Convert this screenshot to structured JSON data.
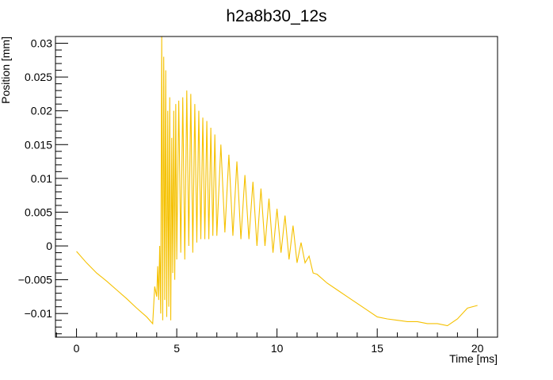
{
  "chart_data": {
    "type": "line",
    "title": "h2a8b30_12s",
    "xlabel": "Time [ms]",
    "ylabel": "Position [mm]",
    "xlim": [
      -1.05,
      21.0
    ],
    "ylim": [
      -0.0135,
      0.031
    ],
    "x_ticks": [
      0,
      5,
      10,
      15,
      20
    ],
    "x_tick_labels": [
      "0",
      "5",
      "10",
      "15",
      "20"
    ],
    "y_ticks": [
      -0.01,
      -0.005,
      0,
      0.005,
      0.01,
      0.015,
      0.02,
      0.025,
      0.03
    ],
    "y_tick_labels": [
      "−0.01",
      "−0.005",
      "0",
      "0.005",
      "0.01",
      "0.015",
      "0.02",
      "0.025",
      "0.03"
    ],
    "grid": false,
    "series": [
      {
        "color": "#f5c100",
        "x": [
          0.0,
          0.5,
          1.0,
          1.5,
          2.0,
          2.5,
          3.0,
          3.5,
          3.8,
          3.9,
          4.0,
          4.05,
          4.1,
          4.15,
          4.2,
          4.25,
          4.3,
          4.35,
          4.4,
          4.45,
          4.5,
          4.55,
          4.6,
          4.65,
          4.7,
          4.75,
          4.8,
          4.85,
          4.9,
          4.95,
          5.0,
          5.1,
          5.2,
          5.3,
          5.4,
          5.5,
          5.6,
          5.7,
          5.8,
          5.9,
          6.0,
          6.1,
          6.2,
          6.3,
          6.4,
          6.5,
          6.6,
          6.7,
          6.8,
          6.9,
          7.0,
          7.2,
          7.4,
          7.6,
          7.8,
          8.0,
          8.2,
          8.4,
          8.6,
          8.8,
          9.0,
          9.2,
          9.4,
          9.6,
          9.8,
          10.0,
          10.2,
          10.4,
          10.6,
          10.8,
          11.0,
          11.2,
          11.4,
          11.6,
          11.8,
          12.0,
          12.5,
          13.0,
          13.5,
          14.0,
          14.5,
          15.0,
          15.5,
          16.0,
          16.5,
          17.0,
          17.5,
          18.0,
          18.5,
          19.0,
          19.5,
          20.0
        ],
        "y": [
          -0.0008,
          -0.0025,
          -0.004,
          -0.0052,
          -0.0065,
          -0.0078,
          -0.0092,
          -0.0105,
          -0.0115,
          -0.006,
          -0.0075,
          -0.003,
          -0.008,
          0.0,
          -0.01,
          0.031,
          -0.011,
          0.028,
          -0.008,
          0.026,
          -0.0105,
          0.02,
          -0.009,
          0.022,
          -0.011,
          0.016,
          -0.004,
          0.02,
          -0.005,
          0.021,
          -0.002,
          0.0215,
          -0.001,
          0.022,
          -0.002,
          0.023,
          0.0,
          0.0225,
          -0.001,
          0.021,
          0.0005,
          0.02,
          0.001,
          0.019,
          0.001,
          0.0185,
          0.001,
          0.0175,
          0.0015,
          0.0165,
          0.0015,
          0.015,
          0.002,
          0.0135,
          0.0015,
          0.0125,
          0.001,
          0.0105,
          0.001,
          0.0095,
          0.0,
          0.0085,
          0.0,
          0.007,
          -0.001,
          0.0055,
          -0.001,
          0.0045,
          -0.002,
          0.003,
          -0.0025,
          0.0005,
          -0.0025,
          -0.0015,
          -0.004,
          -0.0042,
          -0.0055,
          -0.0065,
          -0.0075,
          -0.0085,
          -0.0095,
          -0.0105,
          -0.0108,
          -0.011,
          -0.0112,
          -0.0112,
          -0.0115,
          -0.0115,
          -0.0118,
          -0.0108,
          -0.0092,
          -0.0088
        ]
      }
    ]
  }
}
